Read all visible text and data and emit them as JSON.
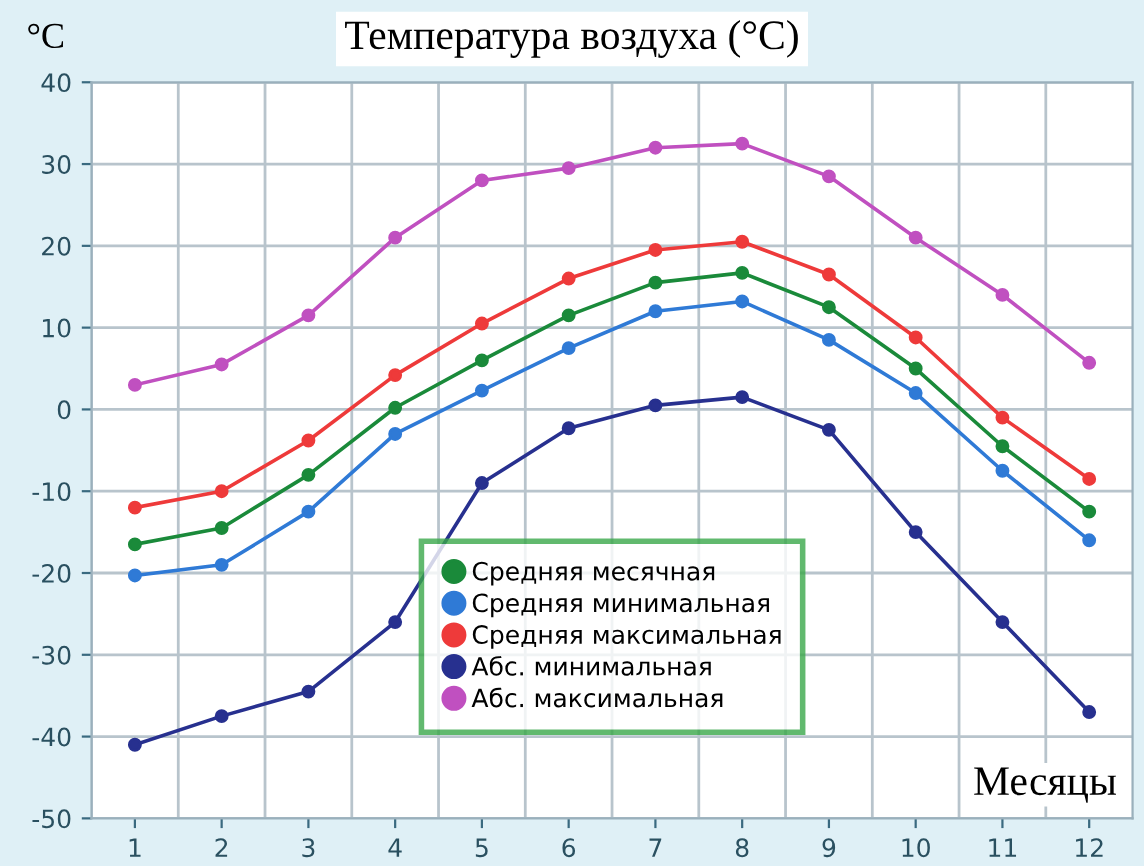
{
  "chart_data": {
    "type": "line",
    "title": "Температура воздуха (°C)",
    "ylabel": "°C",
    "xlabel": "Месяцы",
    "x": [
      1,
      2,
      3,
      4,
      5,
      6,
      7,
      8,
      9,
      10,
      11,
      12
    ],
    "xlim": [
      0.5,
      12.5
    ],
    "xticks": [
      1,
      2,
      3,
      4,
      5,
      6,
      7,
      8,
      9,
      10,
      11,
      12
    ],
    "ylim": [
      -50,
      40
    ],
    "yticks": [
      -50,
      -40,
      -30,
      -20,
      -10,
      0,
      10,
      20,
      30,
      40
    ],
    "grid": true,
    "legend": "bottom",
    "marker": "circle",
    "line_style": "solid",
    "series": [
      {
        "name": "Средняя месячная",
        "color": "#1a8a3a",
        "values": [
          -16.5,
          -14.5,
          -8,
          0.2,
          6,
          11.5,
          15.5,
          16.7,
          12.5,
          5,
          -4.5,
          -12.5
        ]
      },
      {
        "name": "Средняя минимальная",
        "color": "#2f7ad6",
        "values": [
          -20.3,
          -19,
          -12.5,
          -3,
          2.3,
          7.5,
          12,
          13.2,
          8.5,
          2,
          -7.5,
          -16
        ]
      },
      {
        "name": "Средняя максимальная",
        "color": "#ee3a3a",
        "values": [
          -12,
          -10,
          -3.8,
          4.2,
          10.5,
          16,
          19.5,
          20.5,
          16.5,
          8.8,
          -1,
          -8.5
        ]
      },
      {
        "name": "Абс. минимальная",
        "color": "#27308f",
        "values": [
          -41,
          -37.5,
          -34.5,
          -26,
          -9,
          -2.3,
          0.5,
          1.5,
          -2.5,
          -15,
          -26,
          -37
        ]
      },
      {
        "name": "Абс. максимальная",
        "color": "#c050c0",
        "values": [
          3,
          5.5,
          11.5,
          21,
          28,
          29.5,
          32,
          32.5,
          28.5,
          21,
          14,
          5.7
        ]
      }
    ]
  }
}
